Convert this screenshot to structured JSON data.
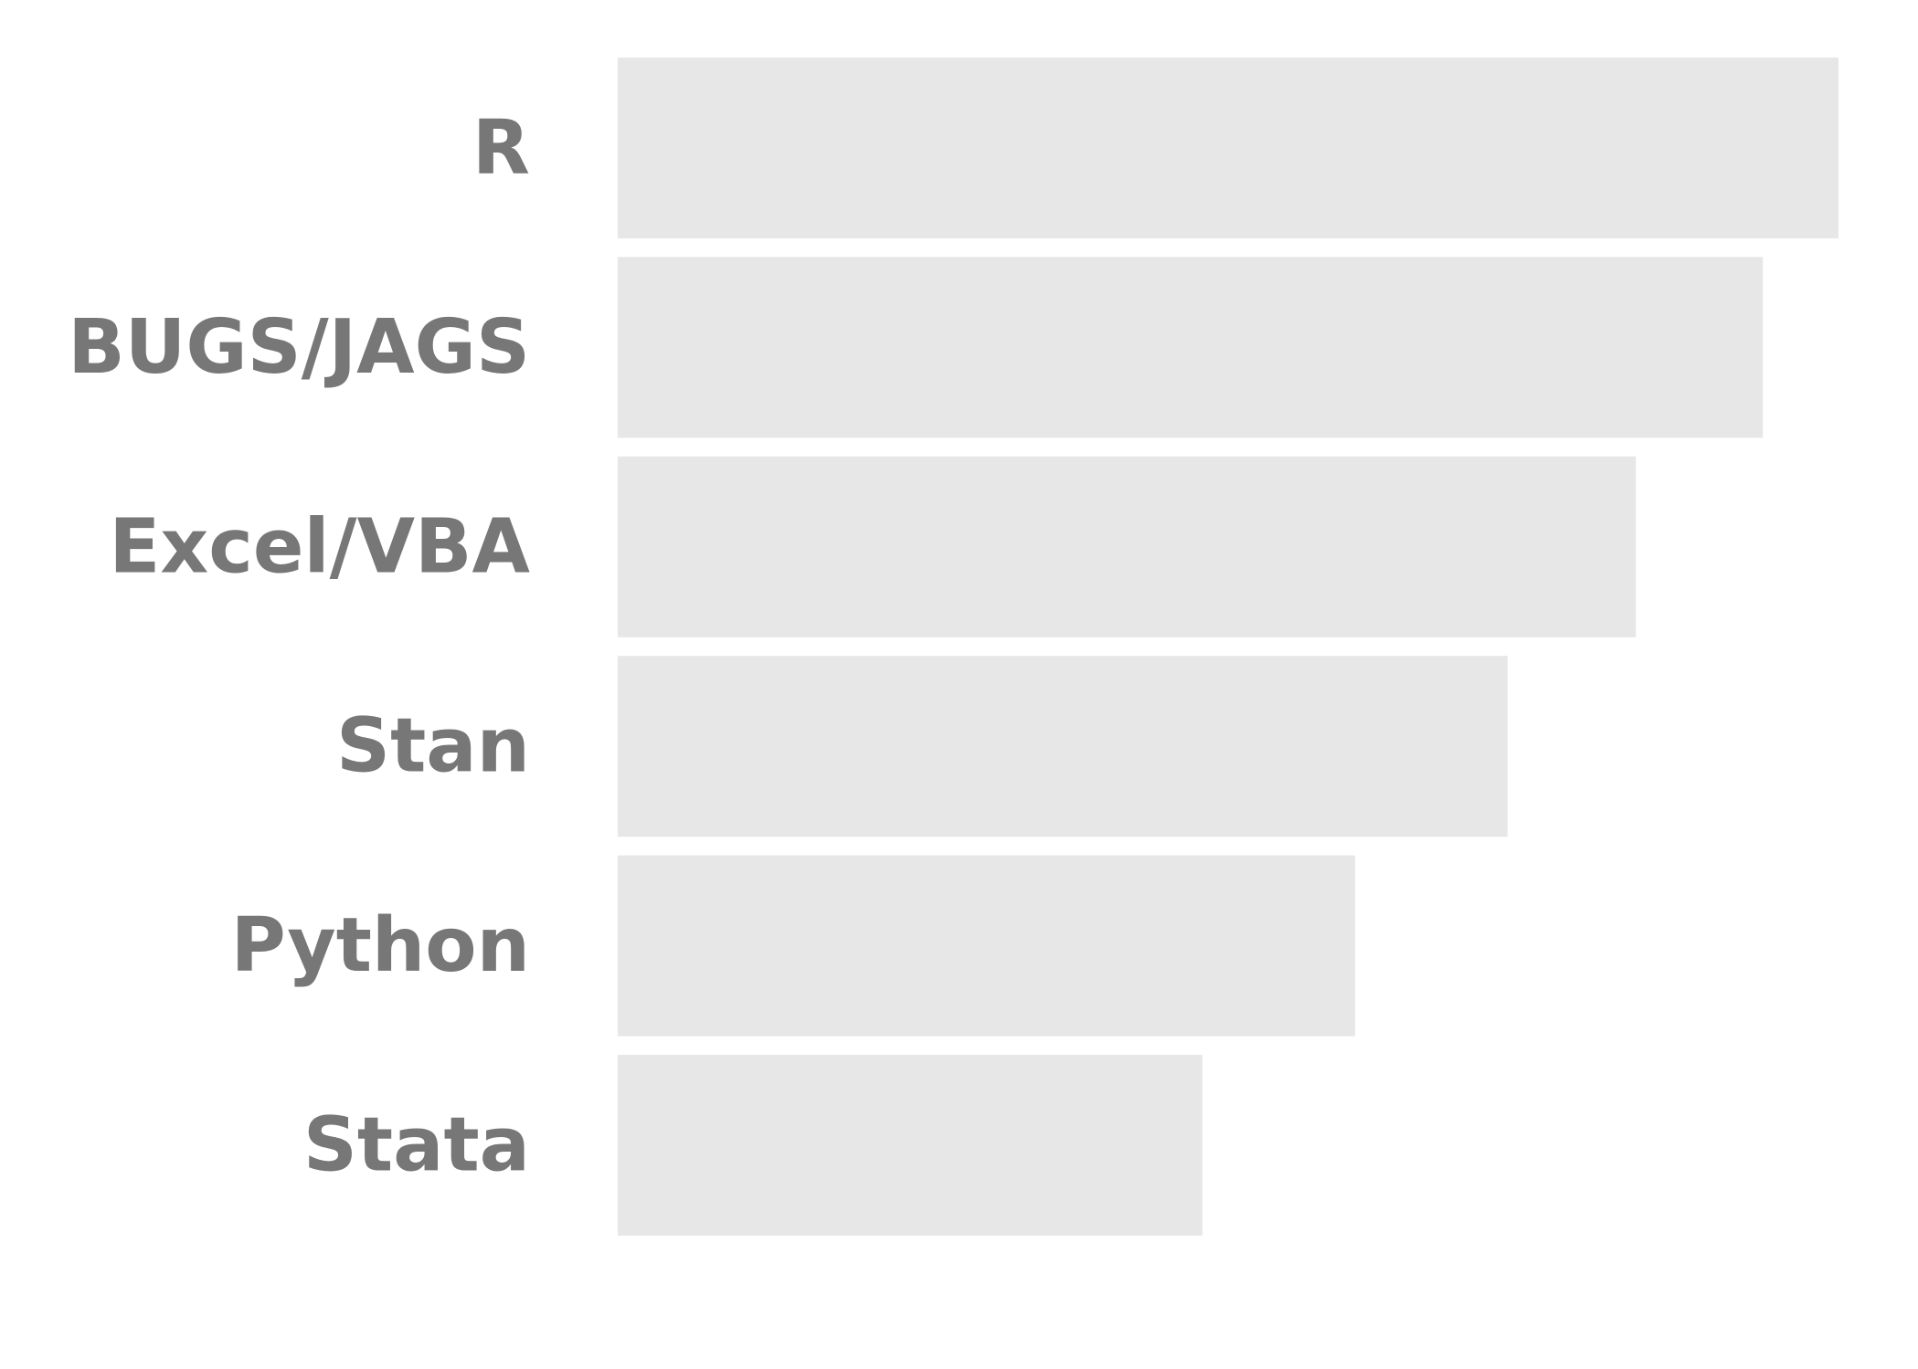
{
  "chart_data": {
    "type": "bar",
    "orientation": "horizontal",
    "categories": [
      "R",
      "BUGS/JAGS",
      "Excel/VBA",
      "Stan",
      "Python",
      "Stata"
    ],
    "values": [
      100,
      93.8,
      83.4,
      72.9,
      60.4,
      47.9
    ],
    "xlim": [
      0,
      100
    ],
    "title": "",
    "xlabel": "",
    "ylabel": "",
    "grid": false,
    "colors": {
      "bar": "#e7e7e7",
      "label": "#777777",
      "background": "#ffffff"
    }
  }
}
